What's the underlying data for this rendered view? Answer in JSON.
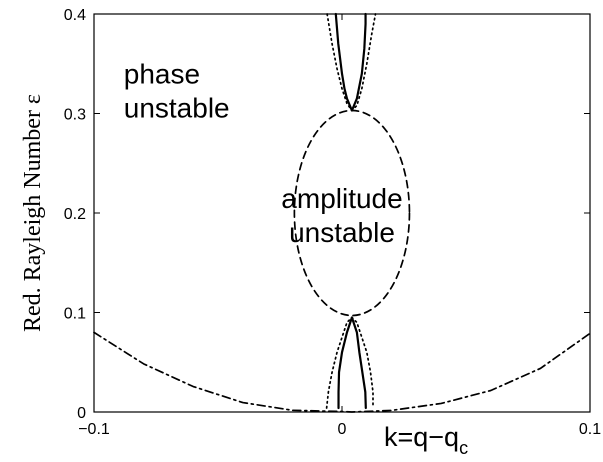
{
  "chart_data": {
    "type": "line",
    "title": "",
    "xlabel": "k=q−q",
    "xlabel_sub": "c",
    "ylabel": "Red. Rayleigh Number ε",
    "xlim": [
      -0.1,
      0.1
    ],
    "ylim": [
      0,
      0.4
    ],
    "xticks": [
      "−0.1",
      "0",
      "0.1"
    ],
    "yticks": [
      "0",
      "0.1",
      "0.2",
      "0.3",
      "0.4"
    ],
    "grid": false,
    "annotations": [
      {
        "lines": [
          "phase",
          "unstable"
        ],
        "x": -0.088,
        "y": 0.33
      },
      {
        "lines": [
          "amplitude",
          "unstable"
        ],
        "x": 0.0,
        "y": 0.205
      }
    ],
    "series": [
      {
        "style": "dashdot",
        "x": [
          -0.1,
          -0.08,
          -0.06,
          -0.04,
          -0.02,
          0.0,
          0.004,
          0.02,
          0.04,
          0.06,
          0.08,
          0.1
        ],
        "y": [
          0.08,
          0.0484,
          0.0256,
          0.0095,
          0.0017,
          0.0005,
          0.0,
          0.0016,
          0.0086,
          0.0216,
          0.0438,
          0.079
        ]
      },
      {
        "style": "dashed",
        "center": [
          0.004,
          0.2
        ],
        "radius_x": 0.0232,
        "radius_y": 0.103
      },
      {
        "style": "solid",
        "x": [
          -0.0025,
          -0.0015,
          0.0,
          0.001,
          0.002,
          0.004,
          0.006,
          0.008,
          0.009,
          0.0095,
          0.0095
        ],
        "y": [
          0.4,
          0.37,
          0.34,
          0.325,
          0.315,
          0.303,
          0.315,
          0.34,
          0.365,
          0.39,
          0.4
        ]
      },
      {
        "style": "solid",
        "x": [
          -0.0014,
          -0.0014,
          -0.0012,
          0.0,
          0.002,
          0.004,
          0.006,
          0.007,
          0.0082,
          0.0094,
          0.0096,
          0.0096
        ],
        "y": [
          0.004,
          0.02,
          0.04,
          0.06,
          0.08,
          0.095,
          0.08,
          0.06,
          0.04,
          0.02,
          0.004,
          0.004
        ]
      },
      {
        "style": "dotted",
        "x": [
          -0.006,
          -0.004,
          -0.002,
          0.0,
          0.002,
          0.004,
          0.006,
          0.008,
          0.01,
          0.012,
          0.0135
        ],
        "y": [
          0.4,
          0.37,
          0.345,
          0.325,
          0.31,
          0.303,
          0.308,
          0.325,
          0.35,
          0.38,
          0.4
        ]
      },
      {
        "style": "dotted",
        "x": [
          -0.0062,
          -0.0055,
          -0.004,
          -0.002,
          0.0,
          0.002,
          0.004,
          0.006,
          0.008,
          0.01,
          0.0115,
          0.0125,
          0.0125
        ],
        "y": [
          0.004,
          0.02,
          0.04,
          0.06,
          0.075,
          0.09,
          0.095,
          0.09,
          0.075,
          0.06,
          0.04,
          0.02,
          0.004
        ]
      }
    ]
  }
}
